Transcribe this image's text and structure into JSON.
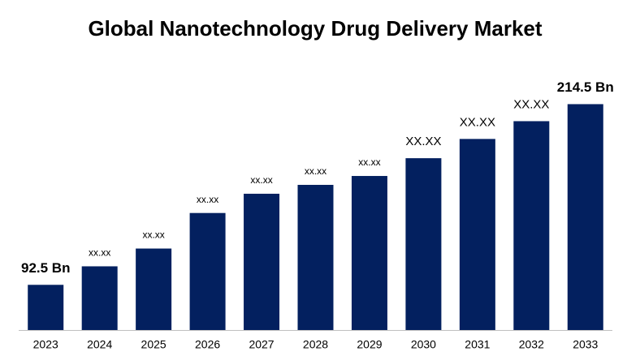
{
  "chart_data": {
    "type": "bar",
    "title": "Global Nanotechnology Drug Delivery Market",
    "categories": [
      "2023",
      "2024",
      "2025",
      "2026",
      "2027",
      "2028",
      "2029",
      "2030",
      "2031",
      "2032",
      "2033"
    ],
    "values": [
      92.5,
      105,
      117,
      141,
      154,
      160,
      166,
      178,
      191,
      203,
      214.5
    ],
    "value_labels": [
      "92.5 Bn",
      "xx.xx",
      "xx.xx",
      "xx.xx",
      "xx.xx",
      "xx.xx",
      "xx.xx",
      "XX.XX",
      "XX.XX",
      "XX.XX",
      "214.5 Bn"
    ],
    "color": "#03205f",
    "ylim": [
      62,
      235
    ]
  }
}
